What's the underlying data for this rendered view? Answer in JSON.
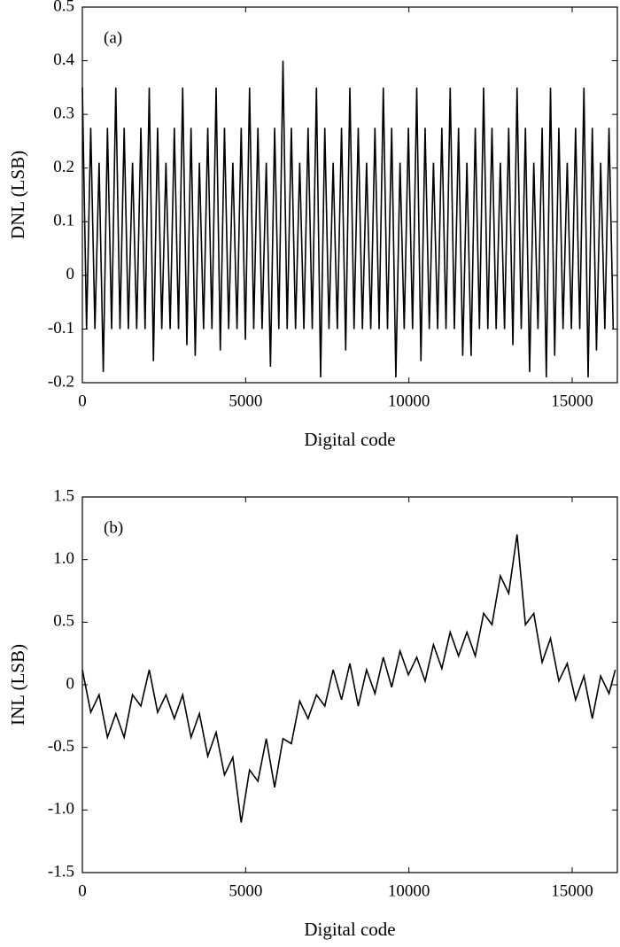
{
  "chart_data": [
    {
      "type": "line",
      "annotation": "(a)",
      "x_label": "Digital code",
      "y_label": "DNL (LSB)",
      "xlim": [
        0,
        16383
      ],
      "xticks": [
        0,
        5000,
        10000,
        15000
      ],
      "ylim": [
        -0.2,
        0.5
      ],
      "yticks": [
        -0.2,
        -0.1,
        0,
        0.1,
        0.2,
        0.3,
        0.4,
        0.5
      ],
      "color": "#000000",
      "x": [
        0,
        128,
        256,
        384,
        512,
        640,
        768,
        896,
        1024,
        1152,
        1280,
        1408,
        1536,
        1664,
        1792,
        1920,
        2048,
        2176,
        2304,
        2432,
        2560,
        2688,
        2816,
        2944,
        3072,
        3200,
        3328,
        3456,
        3584,
        3712,
        3840,
        3968,
        4096,
        4224,
        4352,
        4480,
        4608,
        4736,
        4864,
        4992,
        5120,
        5248,
        5376,
        5504,
        5632,
        5760,
        5888,
        6016,
        6144,
        6272,
        6400,
        6528,
        6656,
        6784,
        6912,
        7040,
        7168,
        7296,
        7424,
        7552,
        7680,
        7808,
        7936,
        8064,
        8192,
        8320,
        8448,
        8576,
        8704,
        8832,
        8960,
        9088,
        9216,
        9344,
        9472,
        9600,
        9728,
        9856,
        9984,
        10112,
        10240,
        10368,
        10496,
        10624,
        10752,
        10880,
        11008,
        11136,
        11264,
        11392,
        11520,
        11648,
        11776,
        11904,
        12032,
        12160,
        12288,
        12416,
        12544,
        12672,
        12800,
        12928,
        13056,
        13184,
        13312,
        13440,
        13568,
        13696,
        13824,
        13952,
        14080,
        14208,
        14336,
        14464,
        14592,
        14720,
        14848,
        14976,
        15104,
        15232,
        15360,
        15488,
        15616,
        15744,
        15872,
        16000,
        16128,
        16256
      ],
      "values": [
        0.35,
        -0.1,
        0.275,
        -0.1,
        0.21,
        -0.18,
        0.275,
        -0.1,
        0.35,
        -0.1,
        0.275,
        -0.1,
        0.21,
        -0.1,
        0.275,
        -0.1,
        0.35,
        -0.16,
        0.275,
        -0.1,
        0.21,
        -0.1,
        0.275,
        -0.1,
        0.35,
        -0.13,
        0.275,
        -0.15,
        0.21,
        -0.1,
        0.275,
        -0.1,
        0.35,
        -0.14,
        0.275,
        -0.1,
        0.21,
        -0.1,
        0.275,
        -0.12,
        0.35,
        -0.1,
        0.275,
        -0.1,
        0.21,
        -0.17,
        0.275,
        -0.1,
        0.4,
        -0.1,
        0.275,
        -0.1,
        0.21,
        -0.1,
        0.275,
        -0.1,
        0.35,
        -0.19,
        0.275,
        -0.1,
        0.21,
        -0.1,
        0.275,
        -0.14,
        0.35,
        -0.1,
        0.275,
        -0.1,
        0.21,
        -0.1,
        0.275,
        -0.1,
        0.35,
        -0.1,
        0.275,
        -0.19,
        0.21,
        -0.1,
        0.275,
        -0.1,
        0.35,
        -0.16,
        0.275,
        -0.1,
        0.21,
        -0.1,
        0.275,
        -0.1,
        0.35,
        -0.1,
        0.275,
        -0.15,
        0.21,
        -0.15,
        0.275,
        -0.1,
        0.35,
        -0.1,
        0.275,
        -0.1,
        0.21,
        -0.1,
        0.275,
        -0.13,
        0.35,
        -0.1,
        0.275,
        -0.18,
        0.21,
        -0.1,
        0.275,
        -0.19,
        0.35,
        -0.15,
        0.275,
        -0.1,
        0.21,
        -0.1,
        0.275,
        -0.1,
        0.35,
        -0.19,
        0.275,
        -0.14,
        0.21,
        -0.1,
        0.275,
        -0.1
      ]
    },
    {
      "type": "line",
      "annotation": "(b)",
      "x_label": "Digital code",
      "y_label": "INL (LSB)",
      "xlim": [
        0,
        16383
      ],
      "xticks": [
        0,
        5000,
        10000,
        15000
      ],
      "ylim": [
        -1.5,
        1.5
      ],
      "yticks": [
        -1.5,
        {
          "value": -1,
          "label": "-1.0"
        },
        -0.5,
        0,
        0.5,
        {
          "value": 1,
          "label": "1.0"
        },
        1.5
      ],
      "color": "#000000",
      "x": [
        0,
        256,
        512,
        768,
        1024,
        1280,
        1536,
        1792,
        2048,
        2304,
        2560,
        2816,
        3072,
        3328,
        3584,
        3840,
        4096,
        4352,
        4608,
        4864,
        5120,
        5376,
        5632,
        5888,
        6144,
        6400,
        6656,
        6912,
        7168,
        7424,
        7680,
        7936,
        8192,
        8448,
        8704,
        8960,
        9216,
        9472,
        9728,
        9984,
        10240,
        10496,
        10752,
        11008,
        11264,
        11520,
        11776,
        12032,
        12288,
        12544,
        12800,
        13056,
        13312,
        13568,
        13824,
        14080,
        14336,
        14592,
        14848,
        15104,
        15360,
        15616,
        15872,
        16128,
        16320
      ],
      "values": [
        0.12,
        -0.22,
        -0.08,
        -0.42,
        -0.23,
        -0.42,
        -0.08,
        -0.17,
        0.12,
        -0.22,
        -0.08,
        -0.27,
        -0.08,
        -0.42,
        -0.23,
        -0.57,
        -0.38,
        -0.72,
        -0.58,
        -1.1,
        -0.68,
        -0.77,
        -0.43,
        -0.82,
        -0.43,
        -0.47,
        -0.13,
        -0.27,
        -0.08,
        -0.17,
        0.12,
        -0.12,
        0.17,
        -0.17,
        0.12,
        -0.07,
        0.22,
        -0.02,
        0.27,
        0.08,
        0.22,
        0.03,
        0.32,
        0.13,
        0.42,
        0.23,
        0.42,
        0.23,
        0.57,
        0.48,
        0.87,
        0.73,
        1.2,
        0.48,
        0.57,
        0.18,
        0.37,
        0.03,
        0.17,
        -0.12,
        0.07,
        -0.27,
        0.07,
        -0.07,
        0.12
      ]
    }
  ]
}
